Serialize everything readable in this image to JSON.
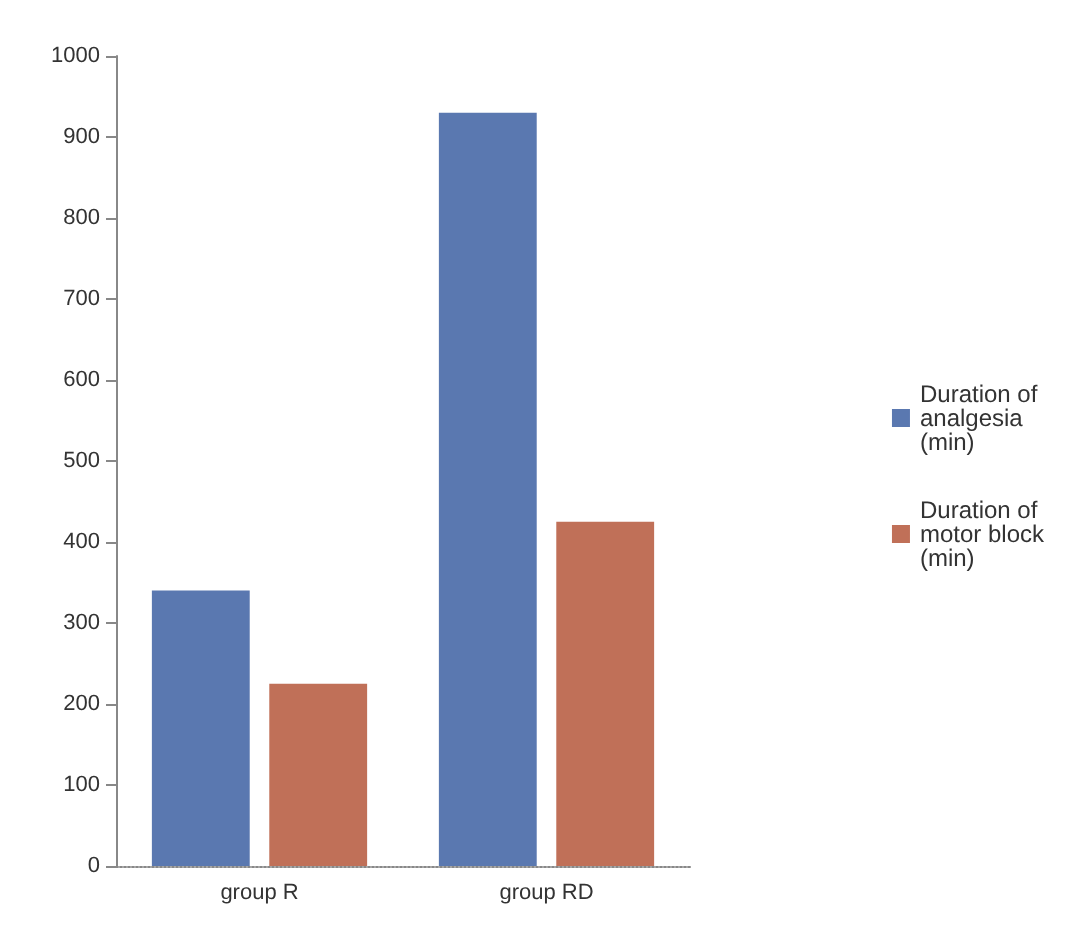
{
  "chart_data": {
    "type": "bar",
    "categories": [
      "group R",
      "group RD"
    ],
    "series": [
      {
        "name": "Duration of analgesia (min)",
        "color": "#5a78b0",
        "values": [
          340,
          930
        ]
      },
      {
        "name": "Duration of motor block (min)",
        "color": "#c07058",
        "values": [
          225,
          425
        ]
      }
    ],
    "ylim": [
      0,
      1000
    ],
    "yticks": [
      0,
      100,
      200,
      300,
      400,
      500,
      600,
      700,
      800,
      900,
      1000
    ],
    "grid": false,
    "legend": "right"
  }
}
